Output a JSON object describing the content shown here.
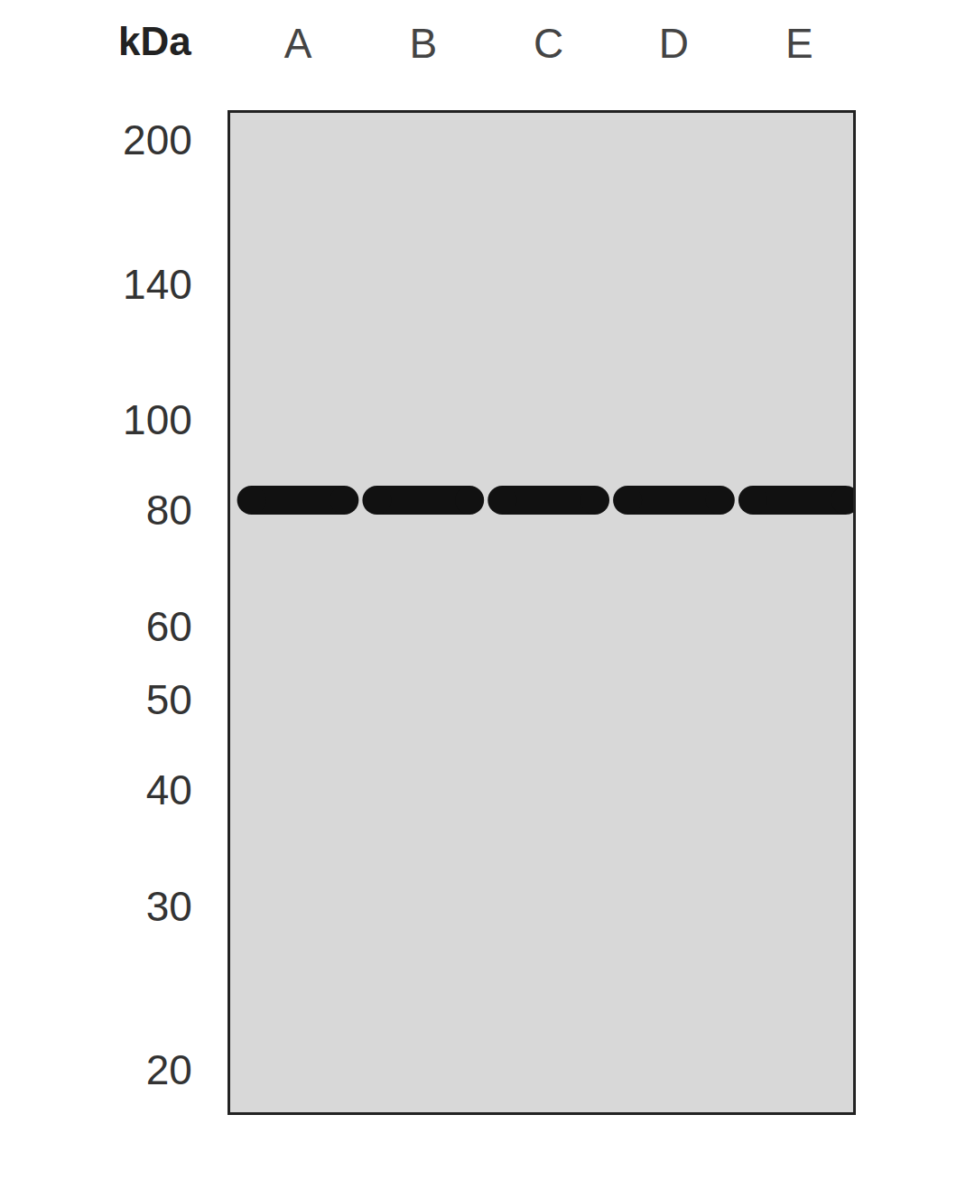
{
  "chart_data": {
    "type": "western_blot",
    "ylabel": "kDa",
    "categories": [
      "A",
      "B",
      "C",
      "D",
      "E"
    ],
    "values": [
      82,
      82,
      82,
      82,
      82
    ],
    "color": "#111111",
    "ylim": [
      18,
      214
    ],
    "yticks": [
      20,
      30,
      40,
      50,
      60,
      80,
      100,
      140,
      200
    ],
    "log": "y",
    "grid": false
  }
}
